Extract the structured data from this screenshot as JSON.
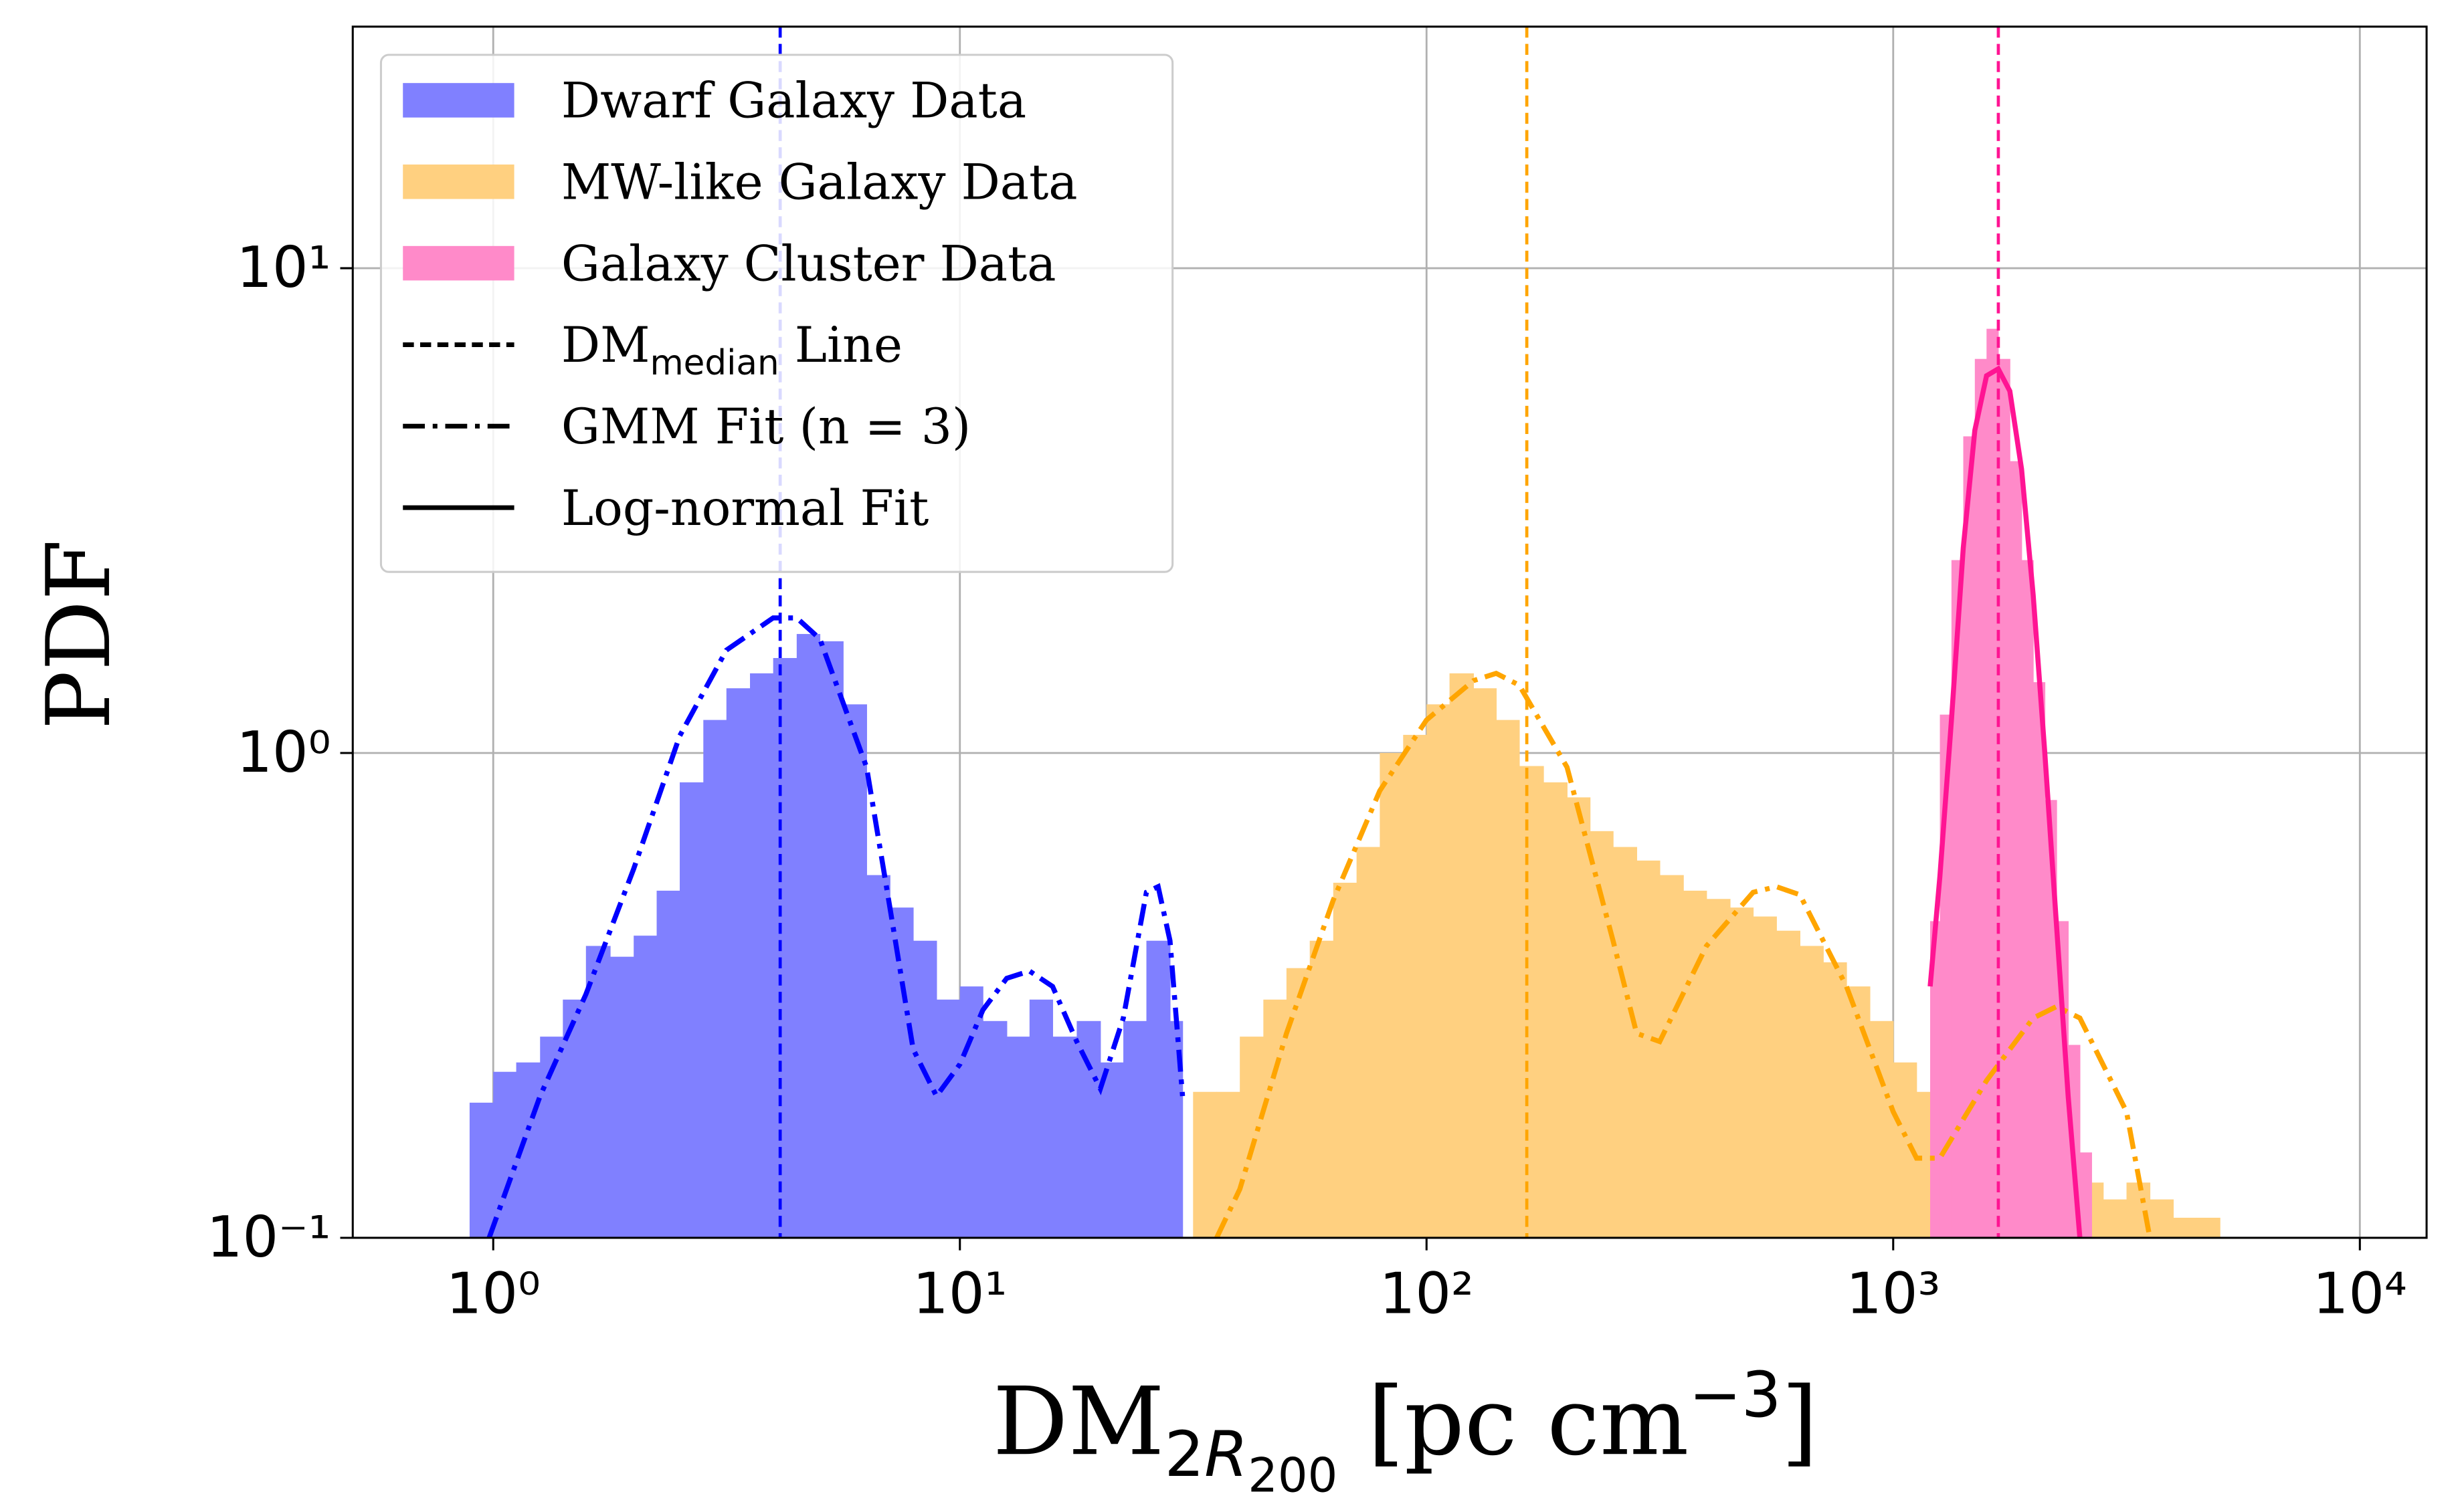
{
  "chart_data": {
    "type": "histogram",
    "xscale": "log",
    "yscale": "log",
    "grid": true,
    "legend": "upper left",
    "xlabel": [
      "DM",
      "2",
      "R",
      "200",
      " [pc cm",
      "−3",
      "]"
    ],
    "ylabel": "PDF",
    "xlim": [
      0.5,
      13900
    ],
    "ylim": [
      0.1,
      31.5
    ],
    "xticks": [
      {
        "value": 1,
        "label": "10⁰"
      },
      {
        "value": 10,
        "label": "10¹"
      },
      {
        "value": 100,
        "label": "10²"
      },
      {
        "value": 1000,
        "label": "10³"
      },
      {
        "value": 10000,
        "label": "10⁴"
      }
    ],
    "yticks": [
      {
        "value": 0.1,
        "label": "10⁻¹"
      },
      {
        "value": 1,
        "label": "10⁰"
      },
      {
        "value": 10,
        "label": "10¹"
      }
    ],
    "series": [
      {
        "name": "Dwarf Galaxy Data",
        "color": "#8080ff",
        "bins": [
          0.89,
          1.0,
          1.12,
          1.26,
          1.41,
          1.58,
          1.78,
          2.0,
          2.24,
          2.51,
          2.82,
          3.16,
          3.55,
          3.98,
          4.47,
          5.01,
          5.62,
          6.31,
          7.08,
          7.94,
          8.91,
          10,
          11.2,
          12.6,
          14.1,
          15.8,
          17.8,
          20,
          22.4,
          25.1,
          28.2,
          30
        ],
        "values": [
          0.19,
          0.22,
          0.23,
          0.26,
          0.31,
          0.4,
          0.38,
          0.42,
          0.52,
          0.87,
          1.17,
          1.36,
          1.46,
          1.57,
          1.76,
          1.7,
          1.26,
          0.56,
          0.48,
          0.41,
          0.31,
          0.33,
          0.28,
          0.26,
          0.31,
          0.26,
          0.28,
          0.23,
          0.28,
          0.41,
          0.28
        ]
      },
      {
        "name": "MW-like Galaxy Data",
        "color": "#ffd080",
        "bins": [
          31.6,
          35.5,
          39.8,
          44.7,
          50.1,
          56.2,
          63.1,
          70.8,
          79.4,
          89.1,
          100,
          112,
          126,
          141,
          158,
          178,
          200,
          224,
          251,
          282,
          316,
          355,
          398,
          447,
          501,
          562,
          631,
          708,
          794,
          891,
          1000,
          1122,
          1259,
          1413,
          1585,
          1778,
          1995,
          2239,
          2512,
          2818,
          3162,
          3548,
          3981,
          4467,
          5012
        ],
        "values": [
          0.2,
          0.2,
          0.26,
          0.31,
          0.36,
          0.41,
          0.54,
          0.64,
          1.0,
          1.09,
          1.26,
          1.46,
          1.36,
          1.17,
          0.94,
          0.87,
          0.81,
          0.69,
          0.64,
          0.6,
          0.56,
          0.52,
          0.5,
          0.48,
          0.46,
          0.43,
          0.4,
          0.37,
          0.33,
          0.28,
          0.23,
          0.2,
          0.17,
          0.17,
          0.15,
          0.16,
          0.15,
          0.14,
          0.13,
          0.12,
          0.13,
          0.12,
          0.11,
          0.11
        ]
      },
      {
        "name": "Galaxy Cluster Data",
        "color": "#ff8ac9",
        "bins": [
          1200,
          1259,
          1333,
          1413,
          1496,
          1585,
          1679,
          1778,
          1884,
          1995,
          2113,
          2239,
          2371,
          2512,
          2661
        ],
        "values": [
          0.45,
          1.2,
          2.5,
          4.5,
          6.5,
          7.5,
          6.5,
          4.0,
          2.5,
          1.4,
          0.8,
          0.45,
          0.25,
          0.15
        ]
      }
    ],
    "medians": [
      {
        "color": "#0000ff",
        "value": 4.12
      },
      {
        "color": "#ffa500",
        "value": 164
      },
      {
        "color": "#ff1493",
        "value": 1680
      }
    ],
    "fits": [
      {
        "color": "#0000ff",
        "style": "dashdot",
        "x": [
          0.98,
          1.26,
          1.58,
          2.0,
          2.51,
          3.16,
          3.98,
          4.47,
          5.01,
          6.31,
          7.08,
          7.94,
          8.91,
          10,
          11.2,
          12.6,
          14.1,
          15.8,
          17.8,
          20,
          22.4,
          25.1,
          26.6,
          28.2,
          30
        ],
        "y": [
          0.1,
          0.196,
          0.318,
          0.577,
          1.085,
          1.63,
          1.9,
          1.9,
          1.72,
          0.935,
          0.48,
          0.245,
          0.196,
          0.228,
          0.295,
          0.343,
          0.355,
          0.33,
          0.254,
          0.203,
          0.284,
          0.516,
          0.53,
          0.41,
          0.196
        ]
      },
      {
        "color": "#ffa500",
        "style": "dashdot",
        "x": [
          35.5,
          39.8,
          50.1,
          63.1,
          79.4,
          100,
          126,
          141,
          158,
          200,
          251,
          282,
          316,
          398,
          501,
          562,
          631,
          794,
          1000,
          1122,
          1259,
          1585,
          1995,
          2239,
          2512,
          3162,
          3548
        ],
        "y": [
          0.1,
          0.126,
          0.264,
          0.497,
          0.836,
          1.17,
          1.41,
          1.46,
          1.38,
          0.935,
          0.41,
          0.264,
          0.254,
          0.4,
          0.516,
          0.53,
          0.51,
          0.33,
          0.182,
          0.146,
          0.146,
          0.211,
          0.284,
          0.3,
          0.284,
          0.182,
          0.1
        ]
      },
      {
        "color": "#ff1493",
        "style": "solid",
        "x": [
          1200,
          1259,
          1333,
          1413,
          1496,
          1585,
          1679,
          1778,
          1884,
          1995,
          2113,
          2239,
          2371,
          2512
        ],
        "y": [
          0.33,
          0.556,
          1.17,
          2.65,
          4.63,
          6.0,
          6.2,
          5.58,
          3.85,
          2.12,
          1.0,
          0.44,
          0.196,
          0.1
        ]
      }
    ],
    "style_legend": [
      {
        "style": "dashed",
        "label": [
          "DM",
          "median",
          " Line"
        ]
      },
      {
        "style": "dashdot",
        "label": [
          "GMM Fit (n = 3)"
        ]
      },
      {
        "style": "solid",
        "label": [
          "Log-normal Fit"
        ]
      }
    ]
  }
}
